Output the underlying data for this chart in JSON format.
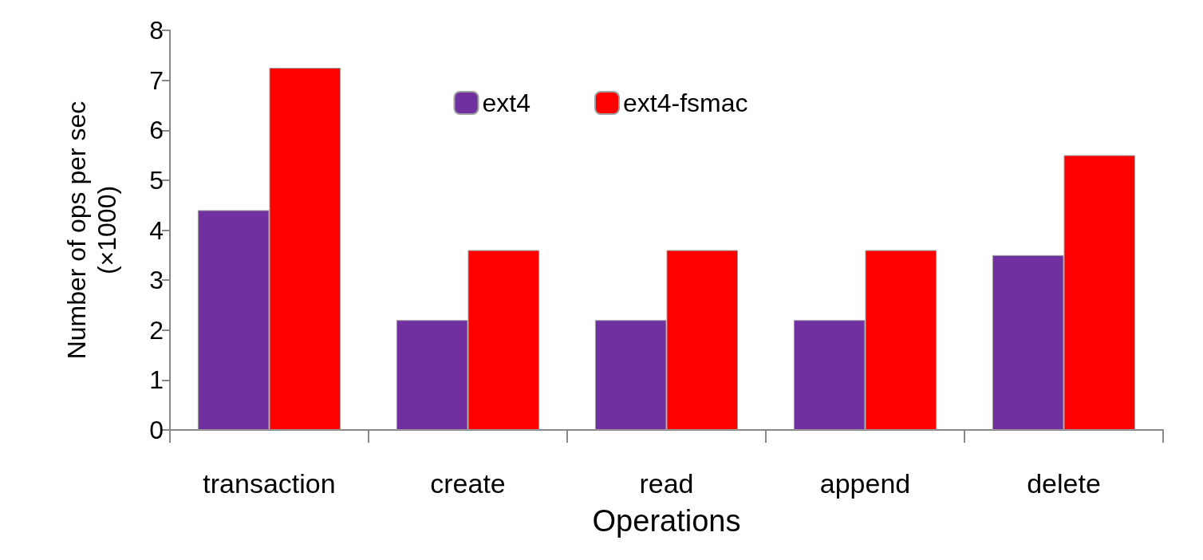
{
  "chart_data": {
    "type": "bar",
    "xlabel": "Operations",
    "ylabel": "Number of ops per sec\n(×1000)",
    "categories": [
      "transaction",
      "create",
      "read",
      "append",
      "delete"
    ],
    "series": [
      {
        "name": "ext4",
        "color": "#7030a0",
        "values": [
          4.4,
          2.2,
          2.2,
          2.2,
          3.5
        ]
      },
      {
        "name": "ext4-fsmac",
        "color": "#ff0000",
        "values": [
          7.25,
          3.6,
          3.6,
          3.6,
          5.5
        ]
      }
    ],
    "ylim": [
      0,
      8
    ],
    "yticks": [
      0,
      1,
      2,
      3,
      4,
      5,
      6,
      7,
      8
    ],
    "grid": false,
    "legend": "top"
  }
}
